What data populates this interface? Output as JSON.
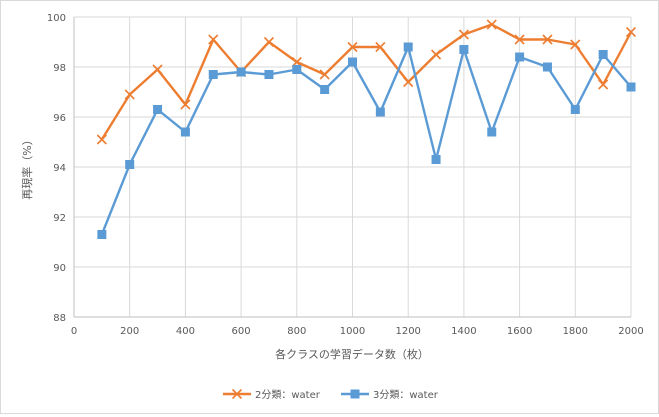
{
  "chart_data": {
    "type": "line",
    "title": "",
    "xlabel": "各クラスの学習データ数（枚）",
    "ylabel": "再現率（%）",
    "xlim": [
      0,
      2000
    ],
    "ylim": [
      88,
      100
    ],
    "x_ticks": [
      "0",
      "200",
      "400",
      "600",
      "800",
      "1000",
      "1200",
      "1400",
      "1600",
      "1800",
      "2000"
    ],
    "y_ticks": [
      "88",
      "90",
      "92",
      "94",
      "96",
      "98",
      "100"
    ],
    "grid": true,
    "legend_position": "bottom",
    "x": [
      100,
      200,
      300,
      400,
      500,
      600,
      700,
      800,
      900,
      1000,
      1100,
      1200,
      1300,
      1400,
      1500,
      1600,
      1700,
      1800,
      1900,
      2000
    ],
    "series": [
      {
        "name": "2分類：water",
        "color": "#ed7d31",
        "marker": "x",
        "values": [
          95.1,
          96.9,
          97.9,
          96.5,
          99.1,
          97.8,
          99.0,
          98.2,
          97.7,
          98.8,
          98.8,
          97.4,
          98.5,
          99.3,
          99.7,
          99.1,
          99.1,
          98.9,
          97.3,
          99.4
        ]
      },
      {
        "name": "3分類：water",
        "color": "#5b9bd5",
        "marker": "square",
        "values": [
          91.3,
          94.1,
          96.3,
          95.4,
          97.7,
          97.8,
          97.7,
          97.9,
          97.1,
          98.2,
          96.2,
          98.8,
          94.3,
          98.7,
          95.4,
          98.4,
          98.0,
          96.3,
          98.5,
          97.2
        ]
      }
    ]
  }
}
